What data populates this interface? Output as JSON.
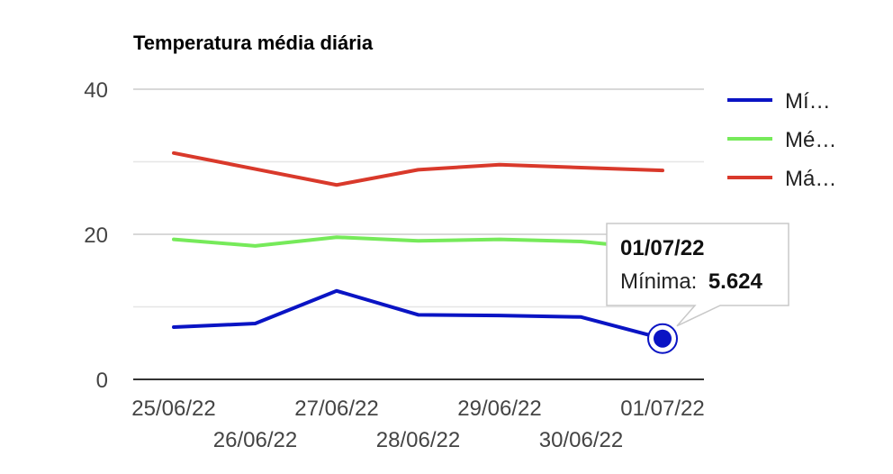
{
  "chart_data": {
    "type": "line",
    "title": "Temperatura média diária",
    "xlabel": "",
    "ylabel": "",
    "categories": [
      "25/06/22",
      "26/06/22",
      "27/06/22",
      "28/06/22",
      "29/06/22",
      "30/06/22",
      "01/07/22"
    ],
    "ylim": [
      0,
      40
    ],
    "yticks": [
      0,
      20,
      40
    ],
    "grid": true,
    "legend_position": "right",
    "series": [
      {
        "name": "Mí…",
        "color": "#0a14c4",
        "values": [
          7.2,
          7.7,
          12.2,
          8.9,
          8.8,
          8.6,
          5.624
        ]
      },
      {
        "name": "Mé…",
        "color": "#76ea5a",
        "values": [
          19.3,
          18.4,
          19.6,
          19.1,
          19.3,
          19.0,
          17.9
        ]
      },
      {
        "name": "Má…",
        "color": "#d9392b",
        "values": [
          31.2,
          29.0,
          26.8,
          28.9,
          29.6,
          29.2,
          28.8
        ]
      }
    ],
    "tooltip": {
      "date": "01/07/22",
      "label": "Mínima:",
      "value": "5.624",
      "series_index": 0,
      "point_index": 6
    }
  }
}
